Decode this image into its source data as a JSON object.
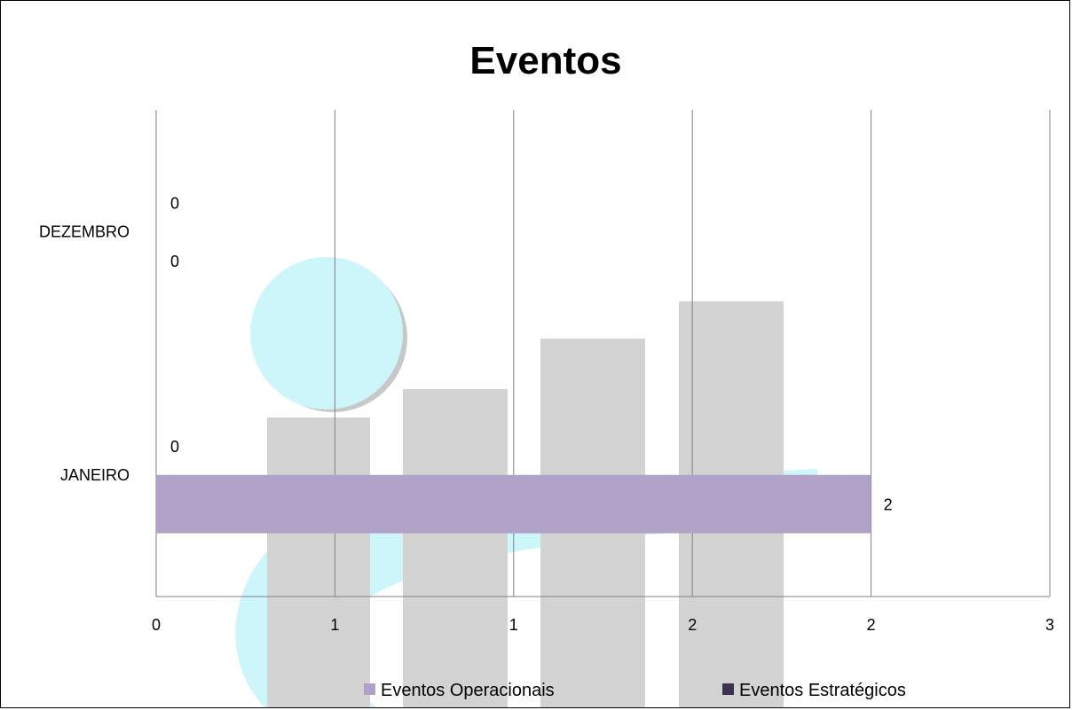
{
  "chart_data": {
    "type": "bar",
    "orientation": "horizontal",
    "title": "Eventos",
    "categories": [
      "JANEIRO",
      "DEZEMBRO"
    ],
    "series": [
      {
        "name": "Eventos Operacionais",
        "values": [
          2,
          0
        ],
        "color": "#b0a1c6"
      },
      {
        "name": "Eventos Estratégicos",
        "values": [
          0,
          0
        ],
        "color": "#3d3251"
      }
    ],
    "x_ticks": [
      "0",
      "1",
      "1",
      "2",
      "2",
      "3"
    ],
    "xlim": [
      0,
      2.5
    ],
    "grid": true,
    "legend_position": "bottom"
  },
  "colors": {
    "grid": "#808080",
    "watermark_light": "#cdf6fb",
    "watermark_gray": "#d3d3d3"
  }
}
